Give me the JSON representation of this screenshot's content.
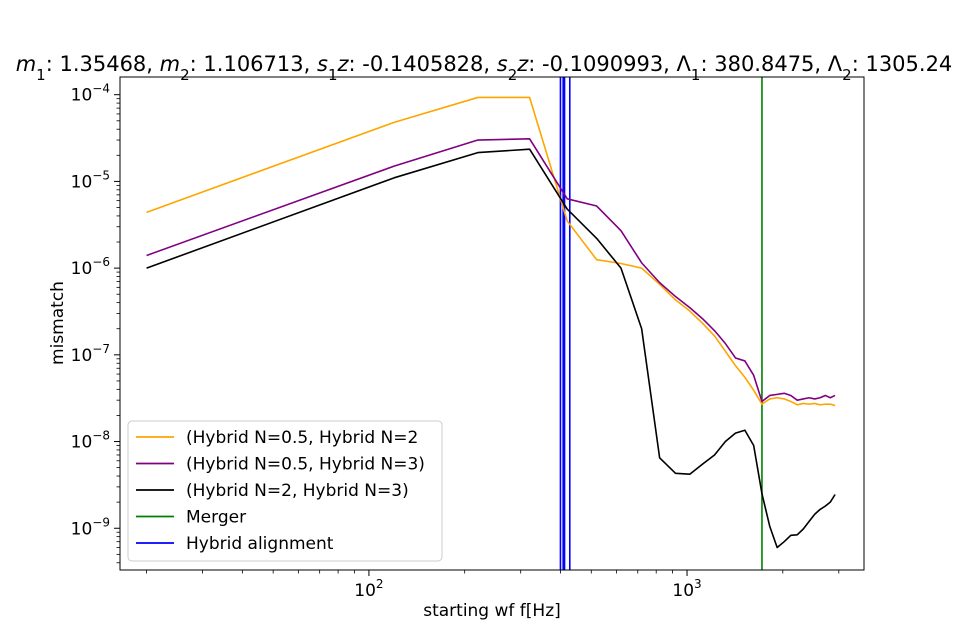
{
  "chart_data": {
    "type": "line",
    "title_parts": [
      {
        "t": "m",
        "style": "italic"
      },
      {
        "t": "1",
        "style": "sub"
      },
      {
        "t": ": 1.35468, "
      },
      {
        "t": "m",
        "style": "italic"
      },
      {
        "t": "2",
        "style": "sub"
      },
      {
        "t": ": 1.106713, "
      },
      {
        "t": "s",
        "style": "italic"
      },
      {
        "t": "1",
        "style": "sub"
      },
      {
        "t": "z",
        "style": "italic"
      },
      {
        "t": ": -0.1405828, "
      },
      {
        "t": "s",
        "style": "italic"
      },
      {
        "t": "2",
        "style": "sub"
      },
      {
        "t": "z",
        "style": "italic"
      },
      {
        "t": ": -0.1090993, "
      },
      {
        "t": "Λ"
      },
      {
        "t": "1",
        "style": "sub"
      },
      {
        "t": ": 380.8475, "
      },
      {
        "t": "Λ"
      },
      {
        "t": "2",
        "style": "sub"
      },
      {
        "t": ": 1305.24"
      }
    ],
    "xlabel": "starting wf f[Hz]",
    "ylabel": "mismatch",
    "xscale": "log",
    "yscale": "log",
    "xlim": [
      16.5,
      3600
    ],
    "ylim": [
      3.3e-10,
      0.00016
    ],
    "xticks": [
      {
        "value": 100,
        "base": "10",
        "exp": "2"
      },
      {
        "value": 1000,
        "base": "10",
        "exp": "3"
      }
    ],
    "yticks": [
      {
        "value": 1e-09,
        "base": "10",
        "exp": "−9"
      },
      {
        "value": 1e-08,
        "base": "10",
        "exp": "−8"
      },
      {
        "value": 1e-07,
        "base": "10",
        "exp": "−7"
      },
      {
        "value": 1e-06,
        "base": "10",
        "exp": "−6"
      },
      {
        "value": 1e-05,
        "base": "10",
        "exp": "−5"
      },
      {
        "value": 0.0001,
        "base": "10",
        "exp": "−4"
      }
    ],
    "grid": false,
    "legend_position": "lower-left",
    "series": [
      {
        "name": "(Hybrid N=0.5, Hybrid N=2",
        "color": "#ffa500",
        "x": [
          20,
          120,
          220,
          320,
          420,
          520,
          620,
          720,
          820,
          920,
          1020,
          1120,
          1220,
          1320,
          1420,
          1520,
          1620,
          1720,
          1820,
          1920,
          2020,
          2120,
          2220,
          2320,
          2420,
          2520,
          2620,
          2720,
          2820,
          2920
        ],
        "y": [
          4.4e-06,
          4.8e-05,
          9.3e-05,
          9.3e-05,
          3.5e-06,
          1.25e-06,
          1.13e-06,
          1e-06,
          6.5e-07,
          4.3e-07,
          3.2e-07,
          2.3e-07,
          1.65e-07,
          1.1e-07,
          7.5e-08,
          5.5e-08,
          3.9e-08,
          2.7e-08,
          3.1e-08,
          3.2e-08,
          3.1e-08,
          2.9e-08,
          2.65e-08,
          2.75e-08,
          2.7e-08,
          2.75e-08,
          2.65e-08,
          2.7e-08,
          2.7e-08,
          2.6e-08
        ]
      },
      {
        "name": "(Hybrid N=0.5, Hybrid N=3)",
        "color": "#800080",
        "x": [
          20,
          120,
          220,
          320,
          420,
          520,
          620,
          720,
          820,
          920,
          1020,
          1120,
          1220,
          1320,
          1420,
          1520,
          1620,
          1720,
          1820,
          1920,
          2020,
          2120,
          2220,
          2320,
          2420,
          2520,
          2620,
          2720,
          2820,
          2920
        ],
        "y": [
          1.4e-06,
          1.5e-05,
          3e-05,
          3.1e-05,
          6.3e-06,
          5.2e-06,
          2.7e-06,
          1.15e-06,
          6.8e-07,
          4.7e-07,
          3.5e-07,
          2.6e-07,
          1.9e-07,
          1.35e-07,
          9.2e-08,
          8.5e-08,
          5.8e-08,
          2.9e-08,
          3.4e-08,
          3.5e-08,
          3.6e-08,
          3.4e-08,
          3e-08,
          3.1e-08,
          3.2e-08,
          3.1e-08,
          3.2e-08,
          3.4e-08,
          3.2e-08,
          3.4e-08
        ]
      },
      {
        "name": "(Hybrid N=2, Hybrid N=3)",
        "color": "#000000",
        "x": [
          20,
          120,
          220,
          320,
          420,
          520,
          620,
          720,
          820,
          920,
          1020,
          1120,
          1220,
          1320,
          1420,
          1520,
          1620,
          1720,
          1820,
          1920,
          2020,
          2120,
          2220,
          2320,
          2420,
          2520,
          2620,
          2720,
          2820,
          2920
        ],
        "y": [
          1e-06,
          1.1e-05,
          2.15e-05,
          2.35e-05,
          4.8e-06,
          2.2e-06,
          1e-06,
          2e-07,
          6.5e-09,
          4.3e-09,
          4.2e-09,
          5.5e-09,
          7e-09,
          1e-08,
          1.25e-08,
          1.35e-08,
          9e-09,
          2.5e-09,
          1.05e-09,
          6e-10,
          7e-10,
          8.3e-10,
          8.4e-10,
          9.8e-10,
          1.2e-09,
          1.45e-09,
          1.65e-09,
          1.8e-09,
          2e-09,
          2.45e-09
        ]
      }
    ],
    "vlines": [
      {
        "label": "Merger",
        "color": "#008000",
        "x": 1720
      },
      {
        "label": "Hybrid alignment",
        "color": "#0000ff",
        "x": 400
      },
      {
        "label": "Hybrid alignment",
        "color": "#0000ff",
        "x": 408
      },
      {
        "label": "Hybrid alignment",
        "color": "#0000ff",
        "x": 412
      },
      {
        "label": "Hybrid alignment",
        "color": "#0000ff",
        "x": 428
      }
    ],
    "legend": [
      {
        "label": "(Hybrid N=0.5, Hybrid N=2",
        "color": "#ffa500"
      },
      {
        "label": "(Hybrid N=0.5, Hybrid N=3)",
        "color": "#800080"
      },
      {
        "label": "(Hybrid N=2, Hybrid N=3)",
        "color": "#000000"
      },
      {
        "label": "Merger",
        "color": "#008000"
      },
      {
        "label": "Hybrid alignment",
        "color": "#0000ff"
      }
    ]
  }
}
